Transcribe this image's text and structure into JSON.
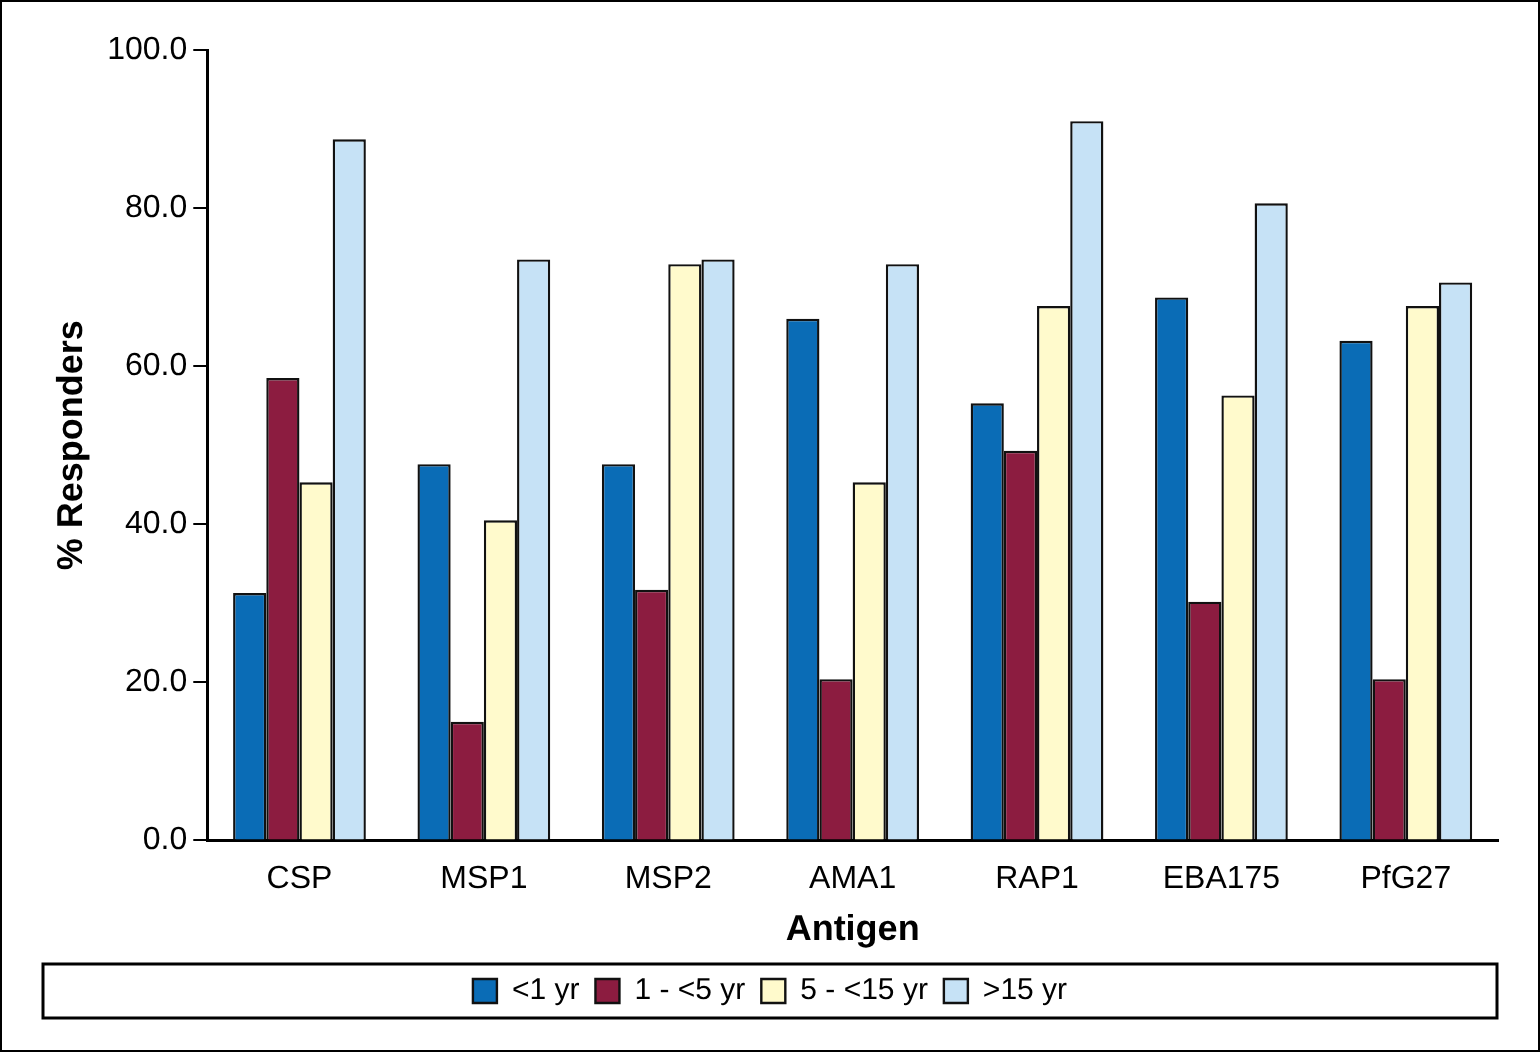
{
  "chart_data": {
    "type": "bar",
    "xlabel": "Antigen",
    "ylabel": "% Responders",
    "categories": [
      "CSP",
      "MSP1",
      "MSP2",
      "AMA1",
      "RAP1",
      "EBA175",
      "PfG27"
    ],
    "series": [
      {
        "name": "<1 yr",
        "color": "#0a6cb6",
        "values": [
          31.3,
          47.6,
          47.6,
          66.0,
          55.3,
          68.7,
          63.2
        ]
      },
      {
        "name": "1 - <5 yr",
        "color": "#8c1c40",
        "values": [
          58.5,
          15.0,
          31.7,
          20.4,
          49.3,
          30.2,
          20.4
        ]
      },
      {
        "name": "5 - <15 yr",
        "color": "#fffacc",
        "values": [
          45.3,
          40.5,
          72.9,
          45.3,
          67.6,
          56.3,
          67.6
        ]
      },
      {
        "name": ">15 yr",
        "color": "#c6e2f6",
        "values": [
          88.7,
          73.5,
          73.5,
          72.9,
          91.0,
          80.6,
          70.6
        ]
      }
    ],
    "ylim": [
      0,
      100
    ],
    "yticks": [
      {
        "value": 0,
        "label": "0.0"
      },
      {
        "value": 20,
        "label": "20.0"
      },
      {
        "value": 40,
        "label": "40.0"
      },
      {
        "value": 60,
        "label": "60.0"
      },
      {
        "value": 80,
        "label": "80.0"
      },
      {
        "value": 100,
        "label": "100.0"
      }
    ],
    "grid": false,
    "legend": "bottom"
  }
}
